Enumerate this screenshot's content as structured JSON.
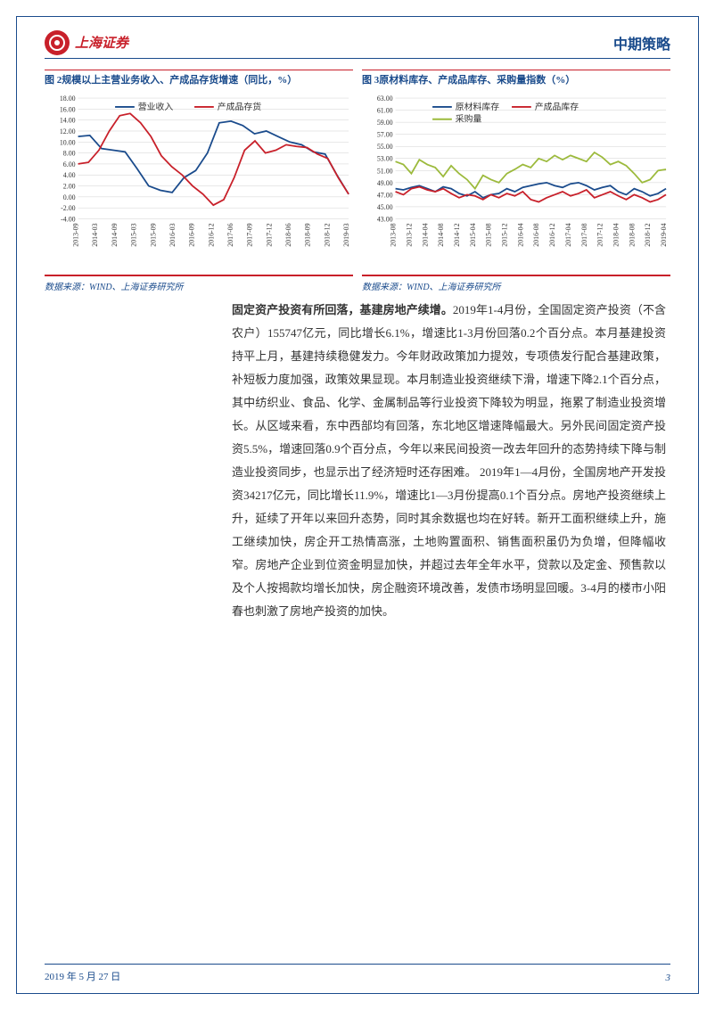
{
  "header": {
    "logo_text": "上海证券",
    "doc_type": "中期策略"
  },
  "chart_left": {
    "type": "line",
    "title": "图 2规模以上主营业务收入、产成品存货增速（同比，%）",
    "source": "数据来源：WIND、上海证券研究所",
    "ylim": [
      -4,
      18
    ],
    "ytick_step": 2,
    "yticks": [
      "-4.00",
      "-2.00",
      "0.00",
      "2.00",
      "4.00",
      "6.00",
      "8.00",
      "10.00",
      "12.00",
      "14.00",
      "16.00",
      "18.00"
    ],
    "x_labels": [
      "2013-09",
      "2014-03",
      "2014-09",
      "2015-03",
      "2015-09",
      "2016-03",
      "2016-09",
      "2016-12",
      "2017-06",
      "2017-09",
      "2017-12",
      "2018-06",
      "2018-09",
      "2018-12",
      "2019-03"
    ],
    "series": [
      {
        "name": "营业收入",
        "color": "#1a4b8c",
        "values": [
          11.0,
          11.2,
          8.8,
          8.5,
          8.2,
          5.2,
          2.0,
          1.2,
          0.8,
          3.5,
          4.8,
          8.0,
          13.5,
          13.8,
          13.0,
          11.5,
          12.0,
          11.0,
          10.0,
          9.5,
          8.2,
          7.8,
          4.0,
          0.5
        ]
      },
      {
        "name": "产成品存货",
        "color": "#c8202a",
        "values": [
          6.0,
          6.3,
          8.5,
          12.0,
          14.8,
          15.2,
          13.5,
          11.0,
          7.5,
          5.5,
          4.0,
          2.0,
          0.5,
          -1.5,
          -0.5,
          3.5,
          8.5,
          10.2,
          8.0,
          8.5,
          9.5,
          9.2,
          9.0,
          7.8,
          7.0,
          3.5,
          0.5
        ]
      }
    ],
    "background_color": "#ffffff",
    "grid_color": "#d0d0d0",
    "axis_fontsize": 8,
    "title_fontsize": 11,
    "legend_fontsize": 10
  },
  "chart_right": {
    "type": "line",
    "title": "图 3原材料库存、产成品库存、采购量指数（%）",
    "source": "数据来源：WIND、上海证券研究所",
    "ylim": [
      43,
      63
    ],
    "ytick_step": 2,
    "yticks": [
      "43.00",
      "45.00",
      "47.00",
      "49.00",
      "51.00",
      "53.00",
      "55.00",
      "57.00",
      "59.00",
      "61.00",
      "63.00"
    ],
    "x_labels": [
      "2013-08",
      "2013-12",
      "2014-04",
      "2014-08",
      "2014-12",
      "2015-04",
      "2015-08",
      "2015-12",
      "2016-04",
      "2016-08",
      "2016-12",
      "2017-04",
      "2017-08",
      "2017-12",
      "2018-04",
      "2018-08",
      "2018-12",
      "2019-04"
    ],
    "series": [
      {
        "name": "原材料库存",
        "color": "#1a4b8c",
        "values": [
          48.0,
          47.8,
          48.2,
          48.5,
          48.0,
          47.5,
          48.3,
          48.0,
          47.2,
          46.8,
          47.5,
          46.5,
          47.0,
          47.2,
          48.0,
          47.5,
          48.2,
          48.5,
          48.8,
          49.0,
          48.5,
          48.2,
          48.8,
          49.0,
          48.5,
          47.8,
          48.2,
          48.5,
          47.5,
          47.0,
          48.0,
          47.5,
          46.8,
          47.2,
          48.0
        ]
      },
      {
        "name": "产成品库存",
        "color": "#c8202a",
        "values": [
          47.5,
          47.0,
          48.0,
          48.3,
          47.8,
          47.5,
          48.0,
          47.2,
          46.5,
          47.0,
          46.8,
          46.2,
          47.0,
          46.5,
          47.2,
          46.8,
          47.5,
          46.2,
          45.8,
          46.5,
          47.0,
          47.5,
          46.8,
          47.2,
          47.8,
          46.5,
          47.0,
          47.5,
          46.8,
          46.2,
          47.0,
          46.5,
          45.8,
          46.2,
          47.0
        ]
      },
      {
        "name": "采购量",
        "color": "#9cba3c",
        "values": [
          52.5,
          52.0,
          50.5,
          52.8,
          52.0,
          51.5,
          50.0,
          51.8,
          50.5,
          49.5,
          48.0,
          50.2,
          49.5,
          49.0,
          50.5,
          51.2,
          52.0,
          51.5,
          53.0,
          52.5,
          53.5,
          52.8,
          53.5,
          53.0,
          52.5,
          54.0,
          53.2,
          52.0,
          52.5,
          51.8,
          50.5,
          49.0,
          49.5,
          51.0,
          51.2
        ]
      }
    ],
    "background_color": "#ffffff",
    "grid_color": "#d0d0d0",
    "axis_fontsize": 8,
    "title_fontsize": 11,
    "legend_fontsize": 10
  },
  "body": {
    "lead_bold": "固定资产投资有所回落，基建房地产续增。",
    "paragraph": "2019年1-4月份，全国固定资产投资（不含农户）155747亿元，同比增长6.1%，增速比1-3月份回落0.2个百分点。本月基建投资持平上月，基建持续稳健发力。今年财政政策加力提效，专项债发行配合基建政策，补短板力度加强，政策效果显现。本月制造业投资继续下滑，增速下降2.1个百分点，其中纺织业、食品、化学、金属制品等行业投资下降较为明显，拖累了制造业投资增长。从区域来看，东中西部均有回落，东北地区增速降幅最大。另外民间固定资产投资5.5%，增速回落0.9个百分点，今年以来民间投资一改去年回升的态势持续下降与制造业投资同步，也显示出了经济短时还存困难。 2019年1—4月份，全国房地产开发投资34217亿元，同比增长11.9%，增速比1—3月份提高0.1个百分点。房地产投资继续上升，延续了开年以来回升态势，同时其余数据也均在好转。新开工面积继续上升，施工继续加快，房企开工热情高涨，土地购置面积、销售面积虽仍为负增，但降幅收窄。房地产企业到位资金明显加快，并超过去年全年水平，贷款以及定金、预售款以及个人按揭款均增长加快，房企融资环境改善，发债市场明显回暖。3-4月的楼市小阳春也刺激了房地产投资的加快。"
  },
  "footer": {
    "date": "2019 年 5 月 27 日",
    "page": "3"
  }
}
